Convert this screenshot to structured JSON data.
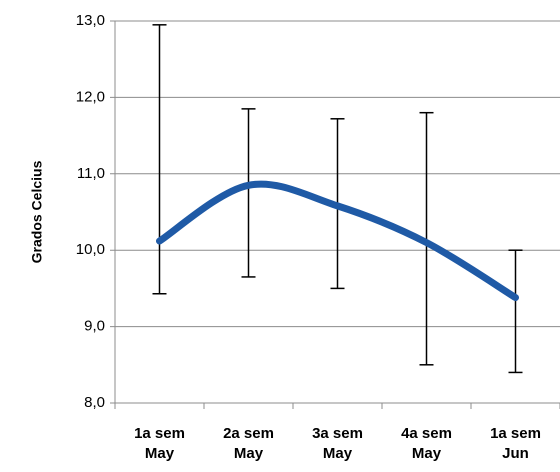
{
  "chart_data": {
    "type": "line",
    "y_label": "Grados Celcius",
    "categories": [
      "1a sem\nMay",
      "2a sem\nMay",
      "3a sem\nMay",
      "4a sem\nMay",
      "1a sem\nJun"
    ],
    "series": [
      {
        "color": "#1f5aa6",
        "values": [
          10.12,
          10.85,
          10.58,
          10.1,
          9.38
        ],
        "error_plus": [
          2.83,
          1.0,
          1.14,
          1.7,
          0.62
        ],
        "error_minus": [
          0.69,
          1.2,
          1.08,
          1.6,
          0.98
        ]
      }
    ],
    "ylim": [
      8,
      13
    ],
    "yticks": [
      {
        "value": 8,
        "label": "8,0"
      },
      {
        "value": 9,
        "label": "9,0"
      },
      {
        "value": 10,
        "label": "10,0"
      },
      {
        "value": 11,
        "label": "11,0"
      },
      {
        "value": 12,
        "label": "12,0"
      },
      {
        "value": 13,
        "label": "13,0"
      }
    ],
    "grid": true,
    "smooth": true
  }
}
